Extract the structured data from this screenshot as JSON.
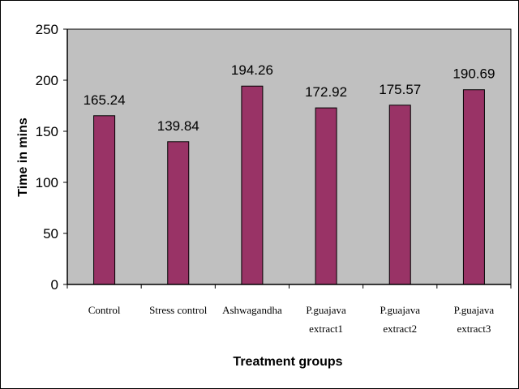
{
  "chart_data": {
    "type": "bar",
    "categories": [
      [
        "Control"
      ],
      [
        "Stress control"
      ],
      [
        "Ashwagandha"
      ],
      [
        "P.guajava",
        "extract1"
      ],
      [
        "P.guajava",
        "extract2"
      ],
      [
        "P.guajava",
        "extract3"
      ]
    ],
    "values": [
      165.24,
      139.84,
      194.26,
      172.92,
      175.57,
      190.69
    ],
    "data_labels": [
      "165.24",
      "139.84",
      "194.26",
      "172.92",
      "175.57",
      "190.69"
    ],
    "xlabel": "Treatment groups",
    "ylabel": "Time in mins",
    "ylim": [
      0,
      250
    ],
    "yticks": [
      0,
      50,
      100,
      150,
      200,
      250
    ],
    "grid": false,
    "legend": "none",
    "colors": {
      "bar": "#993366",
      "bar_edge": "#000000",
      "plot_background": "#c0c0c0",
      "axis": "#000000"
    }
  }
}
